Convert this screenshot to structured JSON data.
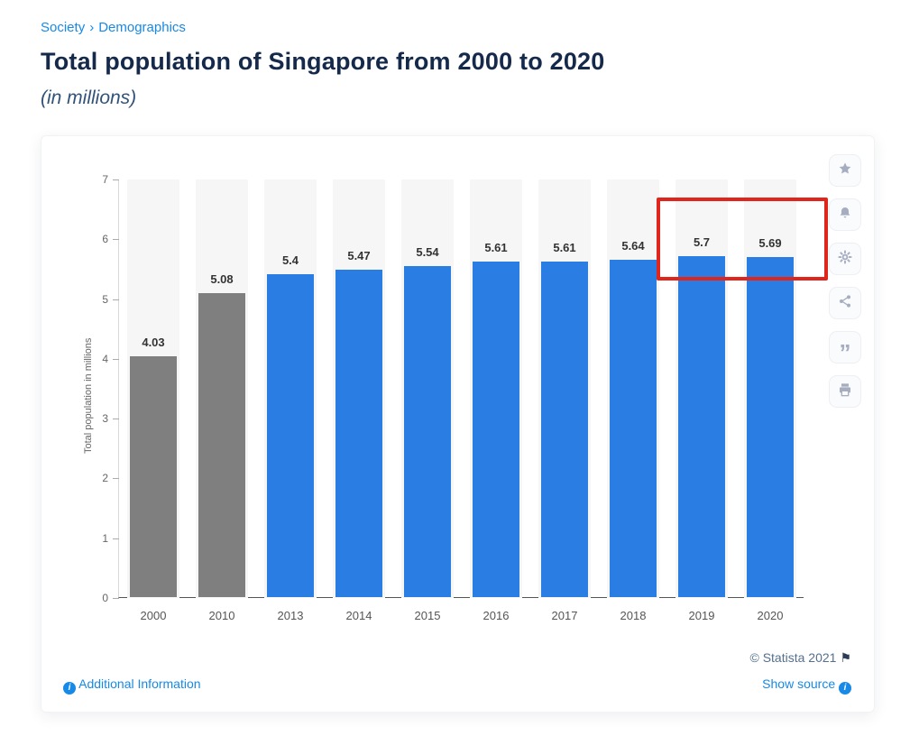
{
  "breadcrumb": {
    "part1": "Society",
    "separator": "›",
    "part2": "Demographics"
  },
  "title": "Total population of Singapore from 2000 to 2020",
  "subtitle": "(in millions)",
  "chart_data": {
    "type": "bar",
    "categories": [
      "2000",
      "2010",
      "2013",
      "2014",
      "2015",
      "2016",
      "2017",
      "2018",
      "2019",
      "2020"
    ],
    "values": [
      4.03,
      5.08,
      5.4,
      5.47,
      5.54,
      5.61,
      5.61,
      5.64,
      5.7,
      5.69
    ],
    "bar_colors": [
      "#7f7f7f",
      "#7f7f7f",
      "#2a7de2",
      "#2a7de2",
      "#2a7de2",
      "#2a7de2",
      "#2a7de2",
      "#2a7de2",
      "#2a7de2",
      "#2a7de2"
    ],
    "title": "Total population of Singapore from 2000 to 2020",
    "xlabel": "",
    "ylabel": "Total population in millions",
    "ylim": [
      0,
      7
    ],
    "yticks": [
      0,
      1,
      2,
      3,
      4,
      5,
      6,
      7
    ],
    "grid": false,
    "legend": false,
    "annotation": {
      "type": "red-rectangle",
      "highlights": [
        "2019",
        "2020"
      ],
      "color": "#e0251c"
    }
  },
  "toolbar": {
    "buttons": [
      "favorite-star",
      "notification-bell",
      "settings-gear",
      "share",
      "cite-quote",
      "print"
    ]
  },
  "footer": {
    "copyright": "© Statista 2021",
    "additional_info": "Additional Information",
    "show_source": "Show source"
  },
  "colors": {
    "bar_blue": "#2a7de2",
    "bar_gray": "#7f7f7f",
    "link_blue": "#1789e6",
    "title_navy": "#15294b",
    "annotation_red": "#e0251c"
  }
}
